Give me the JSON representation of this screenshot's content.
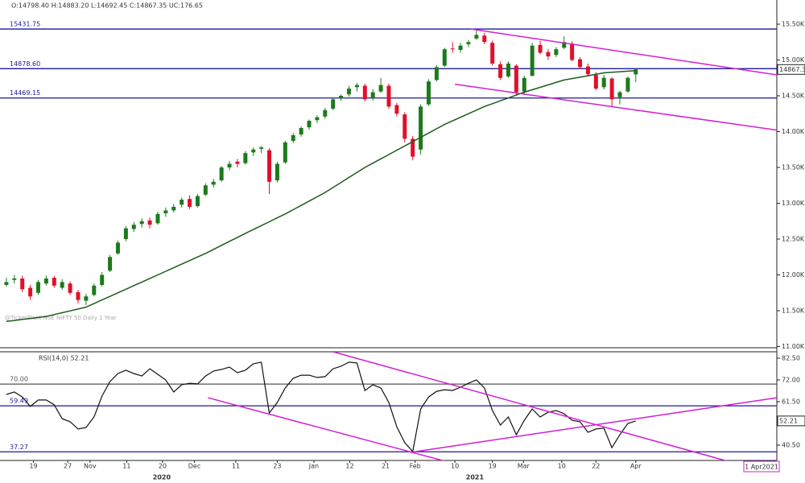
{
  "chart_data": {
    "type": "candlestick",
    "info": "O:14798.40  H:14883.20  L:14692.45  C:14867.35  UC:176.65",
    "watermark": "@TickerPlant NSE NIFTY 50 Daily 1 Year",
    "up_color": "#1c7a1c",
    "down_color": "#e0102a",
    "xlim": [
      -0.8,
      96.7
    ],
    "ylim": [
      10983,
      15837
    ],
    "yticks": [
      {
        "value": 15500,
        "label": "15.50K"
      },
      {
        "value": 15000,
        "label": "15.00K"
      },
      {
        "value": 14500,
        "label": "14.50K"
      },
      {
        "value": 14000,
        "label": "14.00K"
      },
      {
        "value": 13500,
        "label": "13.50K"
      },
      {
        "value": 13000,
        "label": "13.00K"
      },
      {
        "value": 12500,
        "label": "12.50K"
      },
      {
        "value": 12000,
        "label": "12.00K"
      },
      {
        "value": 11500,
        "label": "11.50K"
      },
      {
        "value": 11000,
        "label": "11.00K"
      }
    ],
    "levels": [
      {
        "value": 15431.75,
        "label": "15431.75",
        "color": "#1a1a9a"
      },
      {
        "value": 14878.6,
        "label": "14878.60",
        "color": "#1a1a9a"
      },
      {
        "value": 14469.15,
        "label": "14469.15",
        "color": "#1a1a9a"
      }
    ],
    "last_price_label": "14867.3",
    "candles": [
      [
        11860,
        11960,
        11840,
        11900
      ],
      [
        11930,
        12000,
        11880,
        11950
      ],
      [
        11950,
        11990,
        11760,
        11800
      ],
      [
        11820,
        11860,
        11650,
        11700
      ],
      [
        11750,
        11930,
        11720,
        11900
      ],
      [
        11880,
        11990,
        11850,
        11950
      ],
      [
        11960,
        11990,
        11820,
        11850
      ],
      [
        11820,
        11940,
        11790,
        11900
      ],
      [
        11880,
        11910,
        11720,
        11750
      ],
      [
        11760,
        11790,
        11600,
        11650
      ],
      [
        11640,
        11740,
        11580,
        11700
      ],
      [
        11720,
        11880,
        11700,
        11850
      ],
      [
        11860,
        12040,
        11840,
        12000
      ],
      [
        12060,
        12280,
        12040,
        12250
      ],
      [
        12300,
        12480,
        12280,
        12450
      ],
      [
        12500,
        12680,
        12470,
        12650
      ],
      [
        12640,
        12740,
        12600,
        12700
      ],
      [
        12710,
        12790,
        12660,
        12750
      ],
      [
        12760,
        12800,
        12650,
        12700
      ],
      [
        12720,
        12880,
        12700,
        12850
      ],
      [
        12860,
        12940,
        12810,
        12900
      ],
      [
        12900,
        12990,
        12870,
        12950
      ],
      [
        12980,
        13080,
        12940,
        13050
      ],
      [
        13060,
        13110,
        12920,
        12950
      ],
      [
        12960,
        13130,
        12940,
        13100
      ],
      [
        13120,
        13280,
        13100,
        13250
      ],
      [
        13260,
        13340,
        13220,
        13300
      ],
      [
        13320,
        13520,
        13300,
        13500
      ],
      [
        13500,
        13590,
        13460,
        13550
      ],
      [
        13580,
        13620,
        13500,
        13550
      ],
      [
        13560,
        13730,
        13540,
        13700
      ],
      [
        13710,
        13780,
        13660,
        13750
      ],
      [
        13760,
        13800,
        13700,
        13780
      ],
      [
        13740,
        13770,
        13130,
        13300
      ],
      [
        13320,
        13580,
        13290,
        13550
      ],
      [
        13570,
        13870,
        13550,
        13850
      ],
      [
        13870,
        13980,
        13840,
        13950
      ],
      [
        13960,
        14070,
        13930,
        14050
      ],
      [
        14060,
        14170,
        14030,
        14150
      ],
      [
        14160,
        14230,
        14120,
        14200
      ],
      [
        14210,
        14330,
        14180,
        14300
      ],
      [
        14320,
        14480,
        14300,
        14450
      ],
      [
        14470,
        14520,
        14430,
        14500
      ],
      [
        14520,
        14640,
        14490,
        14600
      ],
      [
        14620,
        14680,
        14560,
        14650
      ],
      [
        14640,
        14670,
        14420,
        14450
      ],
      [
        14470,
        14590,
        14430,
        14550
      ],
      [
        14560,
        14750,
        14540,
        14650
      ],
      [
        14640,
        14670,
        14320,
        14350
      ],
      [
        14370,
        14400,
        14210,
        14250
      ],
      [
        14240,
        14270,
        13850,
        13900
      ],
      [
        13900,
        13940,
        13600,
        13650
      ],
      [
        13750,
        14380,
        13680,
        14350
      ],
      [
        14380,
        14730,
        14360,
        14700
      ],
      [
        14720,
        14930,
        14700,
        14900
      ],
      [
        14920,
        15170,
        14900,
        15150
      ],
      [
        15160,
        15250,
        15100,
        15150
      ],
      [
        15140,
        15240,
        15100,
        15200
      ],
      [
        15220,
        15280,
        15180,
        15250
      ],
      [
        15300,
        15430,
        15280,
        15350
      ],
      [
        15340,
        15380,
        15220,
        15250
      ],
      [
        15240,
        15270,
        14920,
        14950
      ],
      [
        14940,
        14980,
        14720,
        14750
      ],
      [
        14770,
        14980,
        14750,
        14950
      ],
      [
        14920,
        14940,
        14500,
        14550
      ],
      [
        14560,
        14780,
        14530,
        14750
      ],
      [
        14780,
        15240,
        14770,
        15200
      ],
      [
        15210,
        15270,
        15080,
        15100
      ],
      [
        15110,
        15150,
        15000,
        15050
      ],
      [
        15070,
        15180,
        15040,
        15150
      ],
      [
        15170,
        15330,
        15150,
        15250
      ],
      [
        15230,
        15260,
        14980,
        15000
      ],
      [
        15010,
        15040,
        14870,
        14900
      ],
      [
        14910,
        14950,
        14770,
        14800
      ],
      [
        14790,
        14830,
        14580,
        14600
      ],
      [
        14620,
        14790,
        14590,
        14750
      ],
      [
        14740,
        14760,
        14350,
        14450
      ],
      [
        14480,
        14570,
        14380,
        14550
      ],
      [
        14560,
        14770,
        14540,
        14750
      ],
      [
        14798.4,
        14883.2,
        14692.45,
        14867.35
      ]
    ],
    "ma": {
      "color": "#1e5a1e",
      "values": [
        11350,
        11364,
        11378,
        11392,
        11406,
        11420,
        11446,
        11472,
        11498,
        11524,
        11550,
        11600,
        11650,
        11700,
        11750,
        11800,
        11850,
        11900,
        11950,
        12000,
        12050,
        12100,
        12150,
        12200,
        12250,
        12300,
        12356,
        12412,
        12468,
        12524,
        12580,
        12634,
        12688,
        12742,
        12796,
        12850,
        12910,
        12970,
        13030,
        13090,
        13150,
        13220,
        13290,
        13360,
        13430,
        13500,
        13560,
        13620,
        13680,
        13740,
        13800,
        13860,
        13920,
        13980,
        14040,
        14100,
        14150,
        14200,
        14250,
        14300,
        14350,
        14390,
        14430,
        14470,
        14510,
        14550,
        14584,
        14618,
        14652,
        14686,
        14720,
        14740,
        14760,
        14780,
        14800,
        14820,
        14828,
        14836,
        14844,
        14850
      ]
    },
    "trendlines": [
      {
        "color": "#d21fd2",
        "x": [
          58.3,
          96.7
        ],
        "y": [
          15432,
          14792
        ]
      },
      {
        "color": "#d21fd2",
        "x": [
          56.3,
          96.7
        ],
        "y": [
          14661,
          14021
        ]
      }
    ],
    "xticks": [
      {
        "value": 3.4,
        "label": "19"
      },
      {
        "value": 7.7,
        "label": "27"
      },
      {
        "value": 10.5,
        "label": "Nov"
      },
      {
        "value": 15.1,
        "label": "11"
      },
      {
        "value": 19.6,
        "label": "20"
      },
      {
        "value": 23.6,
        "label": "Dec"
      },
      {
        "value": 28.8,
        "label": "11"
      },
      {
        "value": 34.0,
        "label": "23"
      },
      {
        "value": 38.6,
        "label": "Jan"
      },
      {
        "value": 43.1,
        "label": "12"
      },
      {
        "value": 47.6,
        "label": "21"
      },
      {
        "value": 51.3,
        "label": "Feb"
      },
      {
        "value": 56.3,
        "label": "10"
      },
      {
        "value": 61.0,
        "label": "19"
      },
      {
        "value": 64.9,
        "label": "Mar"
      },
      {
        "value": 69.7,
        "label": "10"
      },
      {
        "value": 74.0,
        "label": "22"
      },
      {
        "value": 79.0,
        "label": "Apr"
      }
    ],
    "years": [
      {
        "value": 19.5,
        "label": "2020"
      },
      {
        "value": 58.8,
        "label": "2021"
      }
    ],
    "cursor_label": "1 Apr2021",
    "rsi": {
      "title": "RSI(14,0) 52.21",
      "color": "#111111",
      "ylim": [
        33.1,
        85.6
      ],
      "yticks": [
        {
          "value": 82.5,
          "label": "82.50"
        },
        {
          "value": 72,
          "label": "72.00"
        },
        {
          "value": 61.5,
          "label": "61.50"
        },
        {
          "value": 40.5,
          "label": "40.50"
        }
      ],
      "levels": [
        {
          "value": 70,
          "label": "70.00",
          "color": "#555555"
        },
        {
          "value": 59.49,
          "label": "59.49",
          "color": "#1a1a9a"
        },
        {
          "value": 37.27,
          "label": "37.27",
          "color": "#1a1a9a"
        }
      ],
      "value_label": "52.21",
      "values": [
        65.0,
        66.2,
        63.8,
        59.2,
        62.3,
        62.3,
        60.0,
        53.3,
        51.8,
        48.3,
        49.0,
        54.1,
        64.2,
        71.2,
        75.1,
        76.7,
        75.1,
        73.9,
        77.4,
        74.7,
        72.0,
        66.2,
        69.7,
        70.4,
        70.1,
        73.9,
        76.3,
        77.1,
        78.2,
        75.5,
        76.7,
        79.8,
        80.6,
        56.0,
        61.1,
        68.1,
        72.8,
        74.3,
        74.3,
        73.2,
        73.6,
        77.4,
        78.6,
        80.6,
        80.2,
        66.9,
        69.7,
        68.1,
        61.1,
        49.4,
        41.7,
        37.4,
        58.0,
        63.8,
        66.5,
        67.3,
        66.9,
        68.5,
        70.4,
        72.0,
        68.1,
        57.2,
        50.2,
        54.1,
        45.5,
        52.5,
        58.0,
        54.1,
        56.4,
        57.2,
        55.7,
        52.5,
        51.8,
        46.7,
        48.3,
        48.7,
        39.3,
        45.5,
        51.0,
        52.21
      ],
      "trendlines": [
        {
          "color": "#d21fd2",
          "x": [
            41.0,
            93.1
          ],
          "y": [
            85.6,
            30.0
          ]
        },
        {
          "color": "#d21fd2",
          "x": [
            25.3,
            55.8
          ],
          "y": [
            63.4,
            32.0
          ]
        },
        {
          "color": "#d21fd2",
          "x": [
            50.7,
            96.7
          ],
          "y": [
            37.0,
            63.4
          ]
        }
      ]
    }
  }
}
